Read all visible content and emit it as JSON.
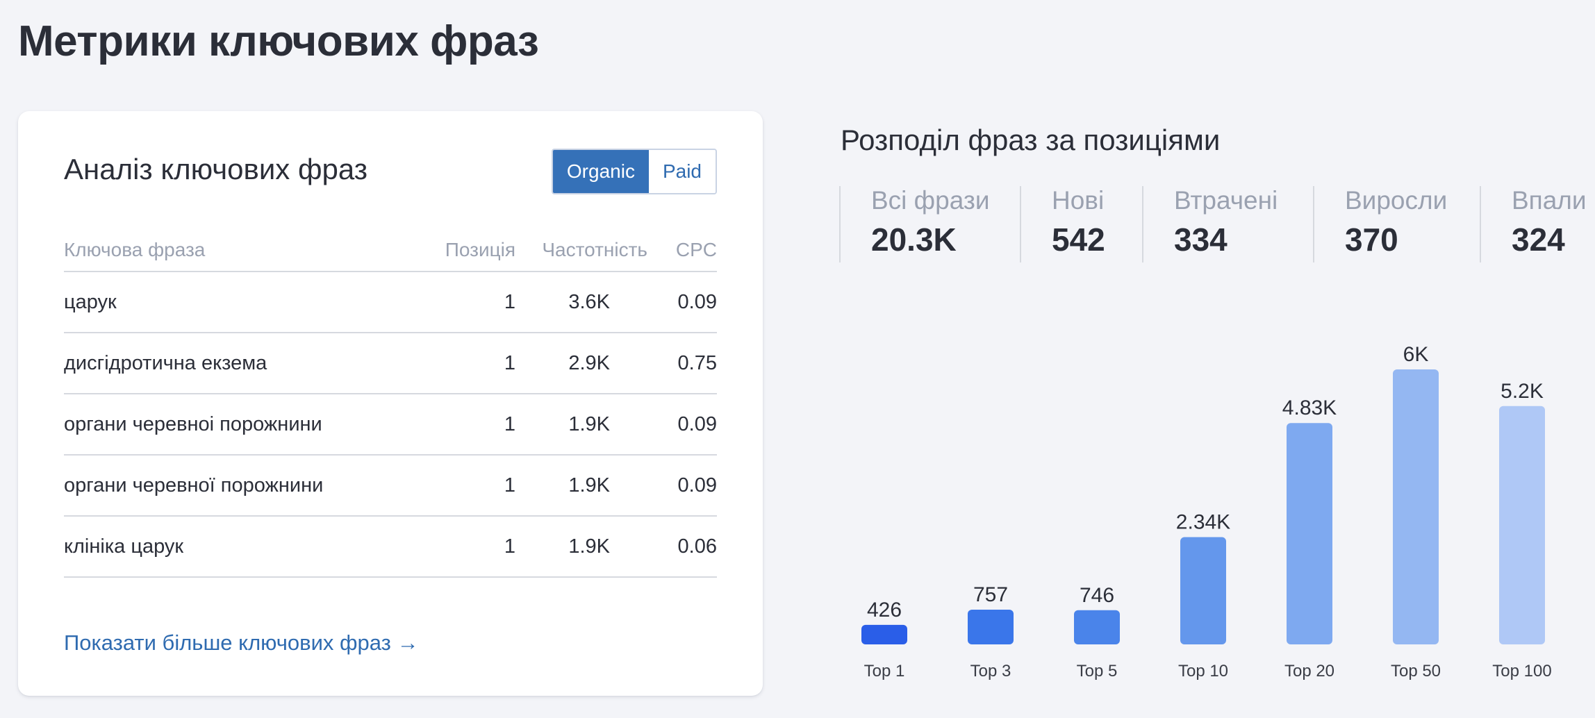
{
  "page": {
    "title": "Метрики ключових фраз"
  },
  "keywords_card": {
    "title": "Аналіз ключових фраз",
    "toggle": {
      "organic": "Organic",
      "paid": "Paid",
      "active": "organic"
    },
    "columns": {
      "keyword": "Ключова фраза",
      "position": "Позиція",
      "frequency": "Частотність",
      "cpc": "CPC"
    },
    "rows": [
      {
        "keyword": "царук",
        "position": "1",
        "frequency": "3.6K",
        "cpc": "0.09"
      },
      {
        "keyword": "дисгідротична екзема",
        "position": "1",
        "frequency": "2.9K",
        "cpc": "0.75"
      },
      {
        "keyword": "органи черевноі порожнини",
        "position": "1",
        "frequency": "1.9K",
        "cpc": "0.09"
      },
      {
        "keyword": "органи черевної порожнини",
        "position": "1",
        "frequency": "1.9K",
        "cpc": "0.09"
      },
      {
        "keyword": "клініка царук",
        "position": "1",
        "frequency": "1.9K",
        "cpc": "0.06"
      }
    ],
    "more_link": "Показати більше ключових фраз →"
  },
  "distribution": {
    "title": "Розподіл фраз за позиціями",
    "stats": [
      {
        "label": "Всі фрази",
        "value": "20.3K"
      },
      {
        "label": "Нові",
        "value": "542"
      },
      {
        "label": "Втрачені",
        "value": "334"
      },
      {
        "label": "Виросли",
        "value": "370"
      },
      {
        "label": "Впали",
        "value": "324"
      }
    ]
  },
  "chart_data": {
    "type": "bar",
    "categories": [
      "Top 1",
      "Top 3",
      "Top 5",
      "Top 10",
      "Top 20",
      "Top 50",
      "Top 100"
    ],
    "values": [
      426,
      757,
      746,
      2340,
      4830,
      6000,
      5200
    ],
    "data_labels": [
      "426",
      "757",
      "746",
      "2.34K",
      "4.83K",
      "6K",
      "5.2K"
    ],
    "colors": [
      "#2a5ee8",
      "#3a76ea",
      "#4a84ea",
      "#6497ec",
      "#7ea9f0",
      "#94b7f2",
      "#afc8f6"
    ],
    "ylim": [
      0,
      6000
    ],
    "grid": false,
    "title": "",
    "xlabel": "",
    "ylabel": ""
  }
}
